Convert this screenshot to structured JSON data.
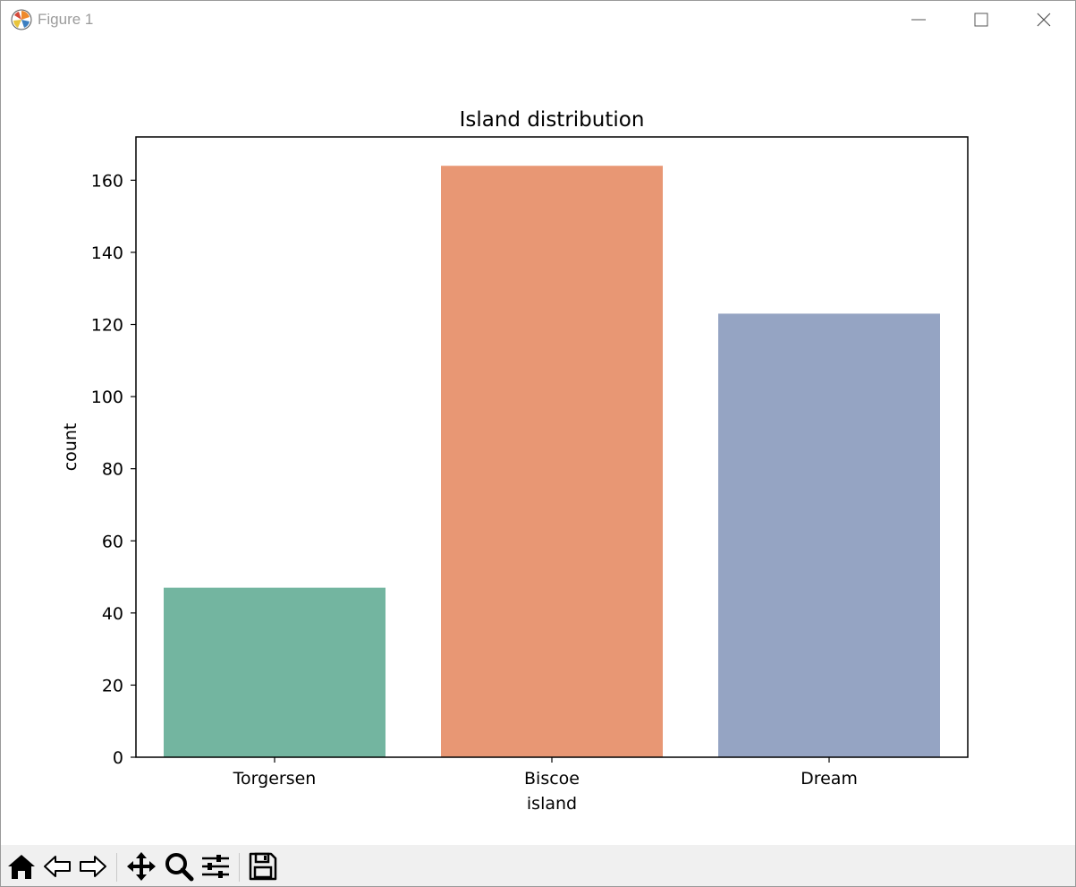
{
  "window": {
    "title": "Figure 1",
    "controls": [
      {
        "name": "minimize",
        "icon": "minimize-icon"
      },
      {
        "name": "maximize",
        "icon": "maximize-icon"
      },
      {
        "name": "close",
        "icon": "close-icon"
      }
    ]
  },
  "toolbar": {
    "tools": [
      {
        "name": "home",
        "icon": "home-icon"
      },
      {
        "name": "back",
        "icon": "back-arrow-icon"
      },
      {
        "name": "forward",
        "icon": "forward-arrow-icon"
      },
      {
        "name": "pan",
        "icon": "move-icon"
      },
      {
        "name": "zoom",
        "icon": "zoom-icon"
      },
      {
        "name": "configure-subplots",
        "icon": "sliders-icon"
      },
      {
        "name": "save",
        "icon": "save-icon"
      }
    ]
  },
  "chart_data": {
    "type": "bar",
    "title": "Island distribution",
    "xlabel": "island",
    "ylabel": "count",
    "categories": [
      "Torgersen",
      "Biscoe",
      "Dream"
    ],
    "values": [
      47,
      164,
      123
    ],
    "colors": [
      "#73b5a0",
      "#e89774",
      "#95a4c3"
    ],
    "ylim": [
      0,
      172
    ],
    "yticks": [
      0,
      20,
      40,
      60,
      80,
      100,
      120,
      140,
      160
    ],
    "grid": false,
    "legend": "none"
  }
}
